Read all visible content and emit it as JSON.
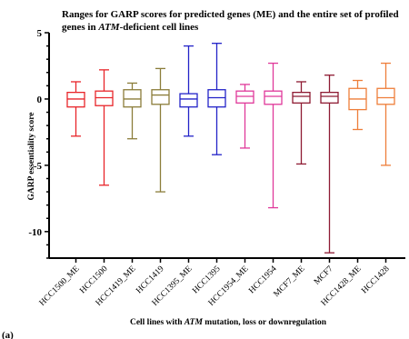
{
  "chart_data": {
    "type": "box",
    "title_line1": "Ranges for GARP scores for predicted genes (ME) and the entire set of profiled",
    "title_line2_pre": "genes in ",
    "title_line2_italic": "ATM",
    "title_line2_post": "-deficient cell lines",
    "ylabel": "GARP essentiality score",
    "xlabel_pre": "Cell lines with ",
    "xlabel_italic": "ATM",
    "xlabel_post": " mutation, loss or downregulation",
    "panel_label": "(a)",
    "ylim": [
      -12,
      5
    ],
    "yticks": [
      5,
      0,
      -5,
      -10
    ],
    "ytick_labels": [
      "5",
      "0",
      "-5",
      "-10"
    ],
    "grid": false,
    "series": [
      {
        "label": "HCC1500_ME",
        "color": "#e8252a",
        "min": -2.8,
        "q1": -0.6,
        "median": 0.0,
        "q3": 0.5,
        "max": 1.3
      },
      {
        "label": "HCC1500",
        "color": "#e8252a",
        "min": -6.5,
        "q1": -0.5,
        "median": 0.1,
        "q3": 0.6,
        "max": 2.2
      },
      {
        "label": "HCC1419_ME",
        "color": "#8b7d3a",
        "min": -3.0,
        "q1": -0.6,
        "median": 0.0,
        "q3": 0.7,
        "max": 1.2
      },
      {
        "label": "HCC1419",
        "color": "#8b7d3a",
        "min": -7.0,
        "q1": -0.4,
        "median": 0.3,
        "q3": 0.7,
        "max": 2.3
      },
      {
        "label": "HCC1395_ME",
        "color": "#2323c8",
        "min": -2.8,
        "q1": -0.6,
        "median": 0.0,
        "q3": 0.4,
        "max": 4.0
      },
      {
        "label": "HCC1395",
        "color": "#2323c8",
        "min": -4.2,
        "q1": -0.6,
        "median": 0.1,
        "q3": 0.7,
        "max": 4.2
      },
      {
        "label": "HCC1954_ME",
        "color": "#e0399a",
        "min": -3.7,
        "q1": -0.3,
        "median": 0.2,
        "q3": 0.6,
        "max": 1.1
      },
      {
        "label": "HCC1954",
        "color": "#e0399a",
        "min": -8.2,
        "q1": -0.4,
        "median": 0.2,
        "q3": 0.6,
        "max": 2.7
      },
      {
        "label": "MCF7_ME",
        "color": "#8e1b33",
        "min": -4.9,
        "q1": -0.3,
        "median": 0.2,
        "q3": 0.5,
        "max": 1.3
      },
      {
        "label": "MCF7",
        "color": "#8e1b33",
        "min": -11.6,
        "q1": -0.3,
        "median": 0.2,
        "q3": 0.5,
        "max": 1.8
      },
      {
        "label": "HCC1428_ME",
        "color": "#ee7e3a",
        "min": -2.3,
        "q1": -0.8,
        "median": 0.0,
        "q3": 0.8,
        "max": 1.4
      },
      {
        "label": "HCC1428",
        "color": "#ee7e3a",
        "min": -5.0,
        "q1": -0.4,
        "median": 0.1,
        "q3": 0.8,
        "max": 2.7
      }
    ]
  }
}
